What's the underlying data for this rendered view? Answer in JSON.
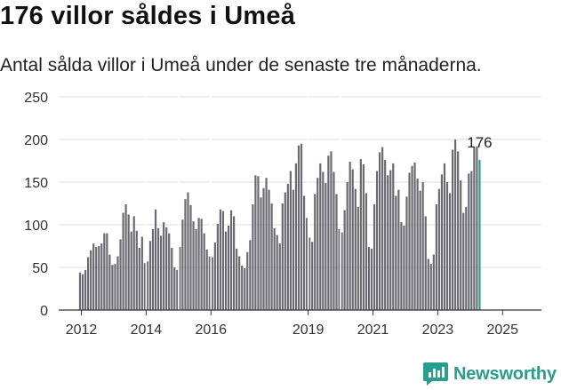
{
  "title": "176 villor såldes i Umeå",
  "subtitle": "Antal sålda villor i Umeå under de senaste tre månaderna.",
  "brand": "Newsworthy",
  "colors": {
    "bar": "#6b6a70",
    "highlight": "#2a9d8f",
    "grid": "#dddddd",
    "axis": "#333333"
  },
  "chart_data": {
    "type": "bar",
    "title": "176 villor såldes i Umeå",
    "ylim": [
      0,
      250
    ],
    "yticks": [
      0,
      50,
      100,
      150,
      200,
      250
    ],
    "xticks": [
      {
        "label": "2012",
        "x": 2012.0
      },
      {
        "label": "2014",
        "x": 2014.0
      },
      {
        "label": "2016",
        "x": 2016.0
      },
      {
        "label": "2019",
        "x": 2019.0
      },
      {
        "label": "2021",
        "x": 2021.0
      },
      {
        "label": "2023",
        "x": 2023.0
      },
      {
        "label": "2025",
        "x": 2025.0
      }
    ],
    "gaps": [
      2014.0,
      2015.0,
      2016.0,
      2019.0,
      2020.0
    ],
    "annotation": {
      "label": "176",
      "value": 176
    },
    "series": [
      {
        "start": "2011-12",
        "values": [
          44,
          42,
          47,
          62,
          70,
          78,
          74,
          75,
          78,
          90,
          90,
          65,
          53,
          54,
          63,
          83,
          114,
          124,
          112,
          92,
          110,
          93,
          73,
          86,
          55,
          57,
          81,
          95,
          118,
          96,
          87,
          103,
          97,
          90,
          73,
          50,
          47,
          74,
          106,
          130,
          138,
          123,
          104,
          95,
          108,
          107,
          90,
          71,
          63,
          62,
          79,
          101,
          118,
          116,
          92,
          99,
          117,
          110,
          72,
          63,
          52,
          49,
          68,
          82,
          124,
          158,
          157,
          132,
          143,
          155,
          141,
          125,
          96,
          88,
          78,
          125,
          138,
          148,
          163,
          141,
          172,
          193,
          195,
          134,
          108,
          85,
          80,
          136,
          155,
          172,
          162,
          149,
          181,
          186,
          162,
          136,
          95,
          91,
          117,
          150,
          174,
          165,
          142,
          121,
          177,
          171,
          137,
          74,
          72,
          124,
          163,
          185,
          191,
          176,
          158,
          164,
          172,
          134,
          141,
          103,
          99,
          133,
          161,
          169,
          173,
          154,
          140,
          150,
          110,
          60,
          54,
          65,
          124,
          142,
          159,
          172,
          150,
          137,
          188,
          200,
          186,
          152,
          114,
          121,
          160,
          163,
          191,
          192,
          176
        ]
      }
    ]
  }
}
